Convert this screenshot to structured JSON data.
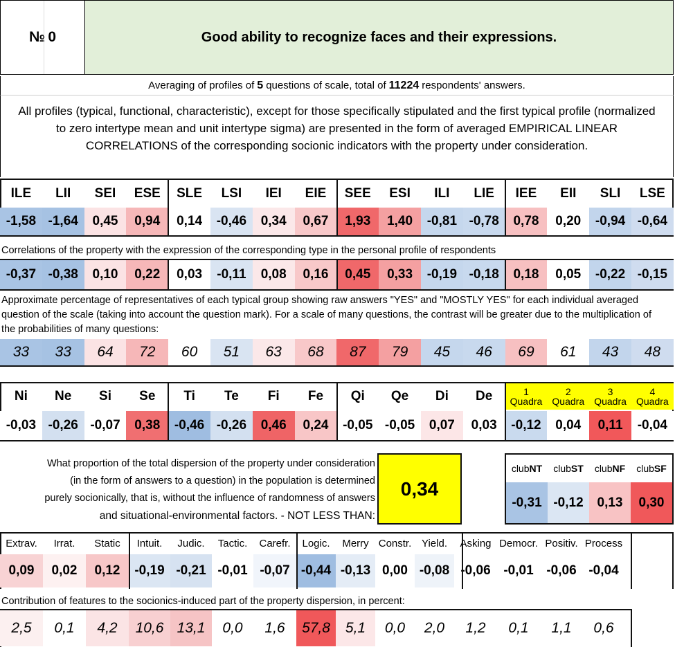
{
  "header": {
    "number_label": "№",
    "number": "0",
    "title": "Good ability to recognize faces and their expressions."
  },
  "averaging": {
    "prefix": "Averaging of profiles of",
    "questions": "5",
    "middle": "questions of scale, total of",
    "respondents": "11224",
    "suffix": "respondents' answers."
  },
  "intro": "All profiles (typical, functional, characteristic), except for those specifically stipulated and the first typical profile (normalized to zero intertype mean and unit intertype sigma) are presented in the form of averaged EMPIRICAL LINEAR CORRELATIONS of the corresponding socionic indicators with the property under consideration.",
  "types": {
    "labels": [
      "ILE",
      "LII",
      "SEI",
      "ESE",
      "SLE",
      "LSI",
      "IEI",
      "EIE",
      "SEE",
      "ESI",
      "ILI",
      "LIE",
      "IEE",
      "EII",
      "SLI",
      "LSE"
    ],
    "profile": [
      "-1,58",
      "-1,64",
      "0,45",
      "0,94",
      "0,14",
      "-0,46",
      "0,34",
      "0,67",
      "1,93",
      "1,40",
      "-0,81",
      "-0,78",
      "0,78",
      "0,20",
      "-0,94",
      "-0,64"
    ],
    "profile_colors": [
      "#a9c4e4",
      "#a6c2e3",
      "#fbe3e4",
      "#f6b7b8",
      "#ffffff",
      "#d9e4f2",
      "#fbe8e9",
      "#f8c8c9",
      "#f0686a",
      "#f4a0a1",
      "#c5d7ed",
      "#c8d9ee",
      "#f7c0c1",
      "#ffffff",
      "#c2d5ec",
      "#cfdcef"
    ],
    "corr_note": "Correlations of the property with the expression of the corresponding type in the personal profile of respondents",
    "corr": [
      "-0,37",
      "-0,38",
      "0,10",
      "0,22",
      "0,03",
      "-0,11",
      "0,08",
      "0,16",
      "0,45",
      "0,33",
      "-0,19",
      "-0,18",
      "0,18",
      "0,05",
      "-0,22",
      "-0,15"
    ],
    "corr_colors": [
      "#a9c4e4",
      "#a6c2e3",
      "#fbe3e4",
      "#f6b7b8",
      "#ffffff",
      "#d9e4f2",
      "#fbe8e9",
      "#f8c8c9",
      "#f0686a",
      "#f4a0a1",
      "#c5d7ed",
      "#c8d9ee",
      "#f7c0c1",
      "#ffffff",
      "#c2d5ec",
      "#cfdcef"
    ],
    "pct_note": "Approximate percentage of representatives of each typical group showing raw answers \"YES\" and \"MOSTLY YES\" for each individual averaged question of the scale (taking into account the question mark). For a scale of many questions, the contrast will be greater due to the multiplication of the probabilities of many questions:",
    "pct": [
      "33",
      "33",
      "64",
      "72",
      "60",
      "51",
      "63",
      "68",
      "87",
      "79",
      "45",
      "46",
      "69",
      "61",
      "43",
      "48"
    ],
    "pct_colors": [
      "#a9c4e4",
      "#a6c2e3",
      "#fbe3e4",
      "#f6b7b8",
      "#ffffff",
      "#d9e4f2",
      "#fbe8e9",
      "#f8c8c9",
      "#f0686a",
      "#f4a0a1",
      "#c5d7ed",
      "#c8d9ee",
      "#f7c0c1",
      "#ffffff",
      "#c2d5ec",
      "#cfdcef"
    ]
  },
  "functions": {
    "labels": [
      "Ni",
      "Ne",
      "Si",
      "Se",
      "Ti",
      "Te",
      "Fi",
      "Fe",
      "Qi",
      "Qe",
      "Di",
      "De"
    ],
    "values": [
      "-0,03",
      "-0,26",
      "-0,07",
      "0,38",
      "-0,46",
      "-0,26",
      "0,46",
      "0,24",
      "-0,05",
      "-0,05",
      "0,07",
      "0,03"
    ],
    "colors": [
      "#ffffff",
      "#d3e0f0",
      "#ffffff",
      "#f06f71",
      "#9fbde1",
      "#d3e0f0",
      "#ef6466",
      "#f8c6c7",
      "#ffffff",
      "#ffffff",
      "#fce6e7",
      "#ffffff"
    ]
  },
  "quadras": {
    "labels": [
      [
        "1",
        "Quadra"
      ],
      [
        "2",
        "Quadra"
      ],
      [
        "3",
        "Quadra"
      ],
      [
        "4",
        "Quadra"
      ]
    ],
    "values": [
      "-0,12",
      "0,04",
      "0,11",
      "-0,04"
    ],
    "colors": [
      "#c9daee",
      "#ffffff",
      "#f1585a",
      "#ffffff"
    ]
  },
  "dispersion": {
    "lines": [
      "What proportion of the total dispersion of the property under consideration",
      "(in the form of answers to a question) in the population is determined",
      "purely socionically, that is, without the influence of randomness of answers",
      "and situational-environmental factors. - NOT LESS THAN:"
    ],
    "value": "0,34"
  },
  "clubs": {
    "labels": [
      [
        "club",
        "NT"
      ],
      [
        "club",
        "ST"
      ],
      [
        "club",
        "NF"
      ],
      [
        "club",
        "SF"
      ]
    ],
    "values": [
      "-0,31",
      "-0,12",
      "0,13",
      "0,30"
    ],
    "colors": [
      "#a9c4e4",
      "#dbe6f3",
      "#f8c3c4",
      "#f0585a"
    ]
  },
  "features": {
    "labels": [
      "Extrav.",
      "Irrat.",
      "Static",
      "Intuit.",
      "Judic.",
      "Tactic.",
      "Carefr.",
      "Logic.",
      "Merry",
      "Constr.",
      "Yield.",
      "Asking",
      "Democr.",
      "Positiv.",
      "Process"
    ],
    "values": [
      "0,09",
      "0,02",
      "0,12",
      "-0,19",
      "-0,21",
      "-0,01",
      "-0,07",
      "-0,44",
      "-0,13",
      "0,00",
      "-0,08",
      "-0,06",
      "-0,01",
      "-0,06",
      "-0,04"
    ],
    "colors": [
      "#f8d3d4",
      "#fdf1f1",
      "#f7c7c8",
      "#dbe6f3",
      "#d6e2f1",
      "#ffffff",
      "#f1f5fb",
      "#9fbde1",
      "#e4ecf6",
      "#ffffff",
      "#eef3f9",
      "#ffffff",
      "#ffffff",
      "#ffffff",
      "#ffffff"
    ],
    "contrib_note": "Contribution of features to the sociоnics-induced part of the property dispersion, in percent:",
    "contrib": [
      "2,5",
      "0,1",
      "4,2",
      "10,6",
      "13,1",
      "0,0",
      "1,6",
      "57,8",
      "5,1",
      "0,0",
      "2,0",
      "1,2",
      "0,1",
      "1,1",
      "0,6"
    ],
    "contrib_colors": [
      "#fcf0f0",
      "#ffffff",
      "#fbe4e5",
      "#f8d0d1",
      "#f6c4c5",
      "#ffffff",
      "#ffffff",
      "#f0585a",
      "#fce7e8",
      "#ffffff",
      "#ffffff",
      "#ffffff",
      "#ffffff",
      "#ffffff",
      "#ffffff"
    ]
  }
}
